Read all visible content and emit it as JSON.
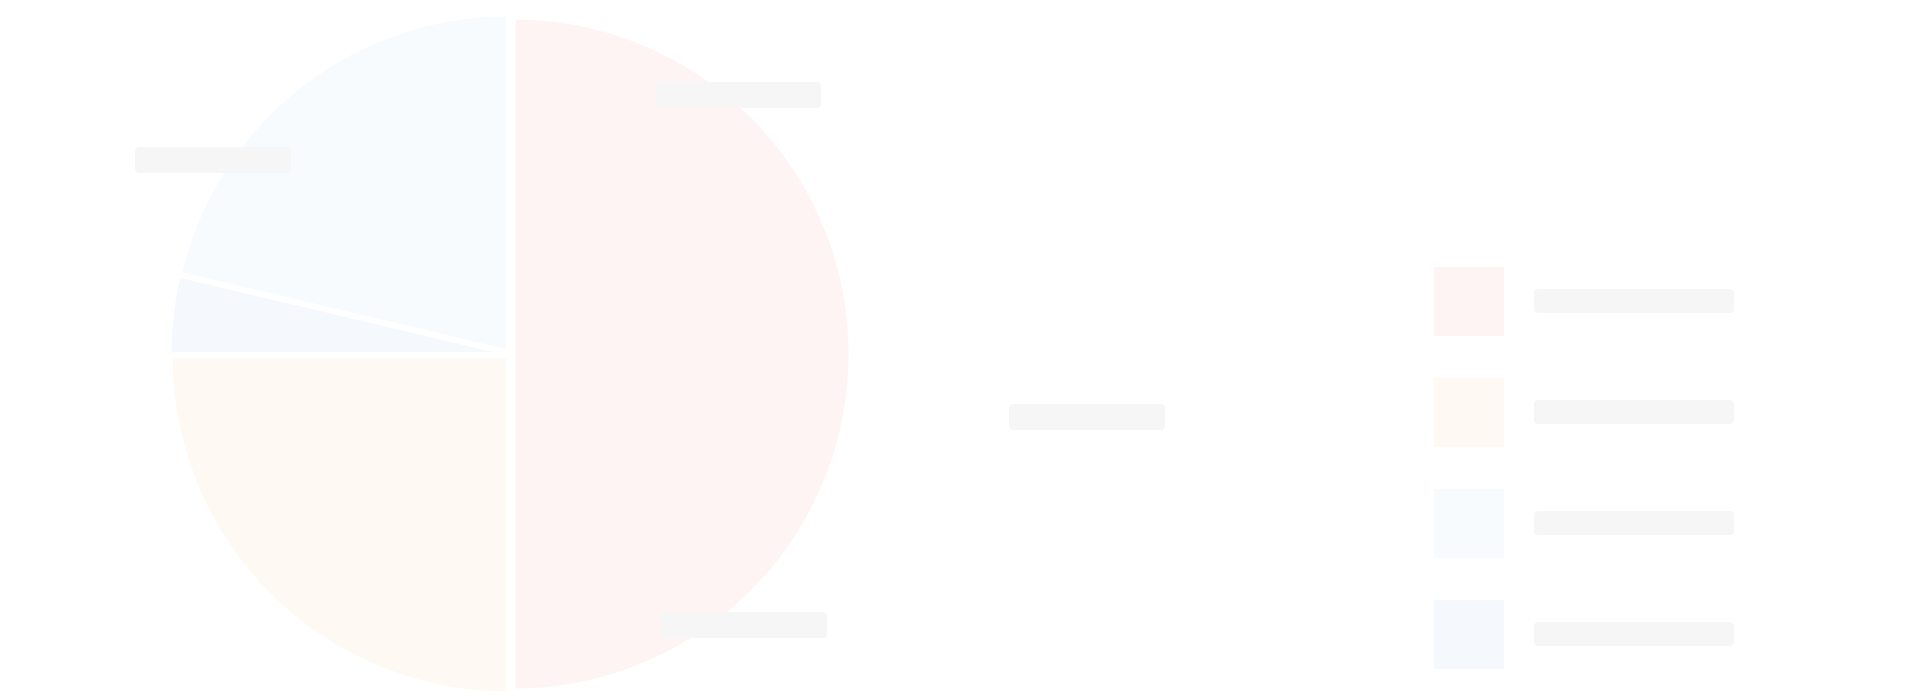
{
  "chart_data": {
    "type": "pie",
    "title": "",
    "categories": [
      "",
      "",
      "",
      ""
    ],
    "values": [
      50,
      25,
      3.7,
      21.3
    ],
    "colors": [
      "#fdf4f3",
      "#fefaf3",
      "#f5f8fd",
      "#f7fbfe"
    ],
    "legend_order": [
      0,
      1,
      3,
      2
    ],
    "legend": {
      "show": true,
      "placement": "right"
    },
    "start_angle_deg": 0,
    "direction": "clockwise",
    "grid": false
  }
}
